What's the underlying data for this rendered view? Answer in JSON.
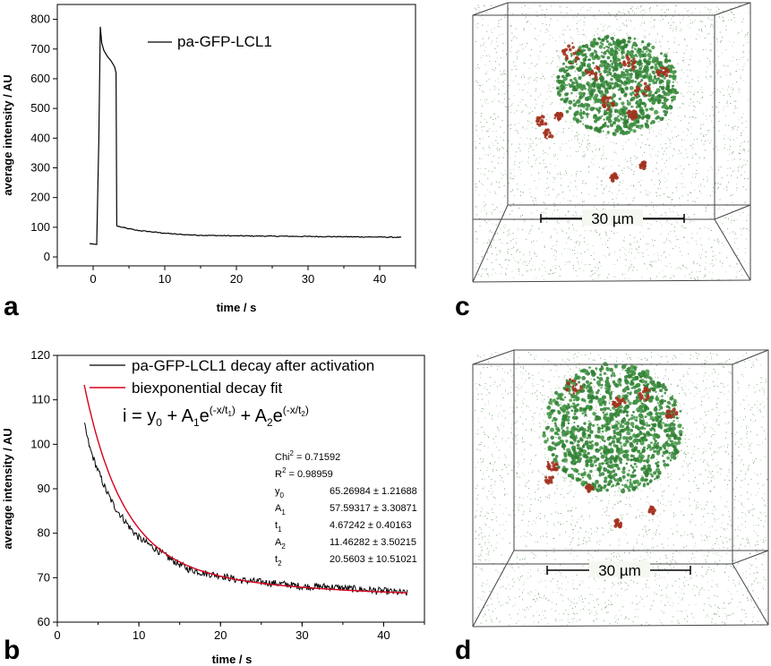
{
  "panels": {
    "a": {
      "letter": "a",
      "chart_data": {
        "type": "line",
        "xlabel": "time / s",
        "ylabel": "average intensity / AU",
        "xlim": [
          -5,
          45
        ],
        "ylim": [
          -30,
          850
        ],
        "xticks": [
          0,
          10,
          20,
          30,
          40
        ],
        "yticks": [
          0,
          100,
          200,
          300,
          400,
          500,
          600,
          700,
          800
        ],
        "series": [
          {
            "name": "pa-GFP-LCL1",
            "x": [
              -0.5,
              0.5,
              0.5,
              0.8,
              1.0,
              1.2,
              1.5,
              2.0,
              2.5,
              3.0,
              3.2,
              3.3,
              3.5,
              4.0,
              5.0,
              6.0,
              8.0,
              10.0,
              12.0,
              15.0,
              20.0,
              25.0,
              30.0,
              35.0,
              40.0,
              43.0
            ],
            "y": [
              45,
              42,
              42,
              400,
              775,
              720,
              695,
              675,
              660,
              640,
              620,
              105,
              103,
              100,
              95,
              90,
              85,
              80,
              76,
              73,
              71,
              70,
              69,
              68,
              67,
              66
            ]
          }
        ],
        "legend": "top-right"
      }
    },
    "b": {
      "letter": "b",
      "chart_data": {
        "type": "line",
        "xlabel": "time / s",
        "ylabel": "average intensity / AU",
        "xlim": [
          0,
          45
        ],
        "ylim": [
          60,
          120
        ],
        "xticks": [
          0,
          10,
          20,
          30,
          40
        ],
        "yticks": [
          60,
          70,
          80,
          90,
          100,
          110,
          120
        ],
        "series": [
          {
            "name": "pa-GFP-LCL1 decay after activation",
            "color": "#000000",
            "x": [
              3.3,
              4,
              5,
              6,
              7,
              8,
              9,
              10,
              12,
              14,
              16,
              18,
              20,
              22,
              25,
              28,
              30,
              33,
              36,
              40,
              43
            ],
            "y": [
              104.5,
              99,
              94,
              89.5,
              86,
              83.5,
              81,
              79,
              76.5,
              74,
              72,
              71,
              70.5,
              69.5,
              69,
              68.5,
              68,
              68,
              67.5,
              67,
              66.5
            ]
          },
          {
            "name": "biexponential decay fit",
            "color": "#d6001c",
            "fit": {
              "y0": 65.26984,
              "A1": 57.59317,
              "t1": 4.67242,
              "A2": 11.46282,
              "t2": 20.5603
            },
            "x_range": [
              3.3,
              43
            ]
          }
        ],
        "legend": "top-right",
        "equation": {
          "lhs": "i = y",
          "sub0": "0",
          "mid1": " + A",
          "sub1": "1",
          "e1": "e",
          "exp1": "(-x/t",
          "exp1sub": "1",
          "exp1close": ")",
          "mid2": " + A",
          "sub2": "2",
          "e2": "e",
          "exp2": "(-x/t",
          "exp2sub": "2",
          "exp2close": ")"
        },
        "stats": {
          "chi_label": "Chi",
          "chi_sup": "2",
          "chi_value": " = 0.71592",
          "r_label": "R",
          "r_sup": "2",
          "r_value": " = 0.98959",
          "params": [
            {
              "name": "y",
              "sub": "0",
              "value": "65.26984 ± 1.21688"
            },
            {
              "name": "A",
              "sub": "1",
              "value": "57.59317 ± 3.30871"
            },
            {
              "name": "t",
              "sub": "1",
              "value": "4.67242  ± 0.40163"
            },
            {
              "name": "A",
              "sub": "2",
              "value": "11.46282 ± 3.50215"
            },
            {
              "name": "t",
              "sub": "2",
              "value": "20.5603 ± 10.51021"
            }
          ]
        }
      }
    },
    "c": {
      "letter": "c",
      "scale_label": "30 µm"
    },
    "d": {
      "letter": "d",
      "scale_label": "30 µm"
    }
  },
  "colors": {
    "fit_line": "#d6001c",
    "cell_green": "#2e7d2e",
    "cell_red": "#a3321f",
    "box_line": "#444444"
  }
}
